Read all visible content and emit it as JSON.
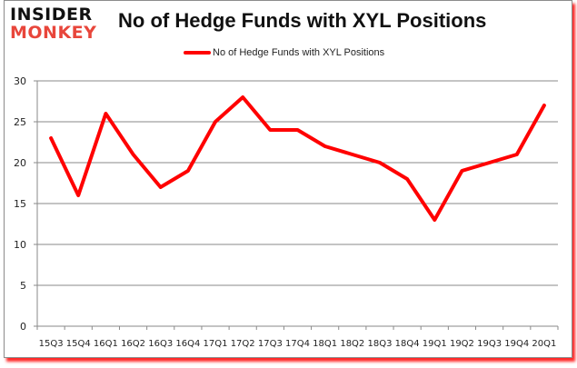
{
  "brand": {
    "line1": "INSIDER",
    "line2": "MONKEY"
  },
  "chart_data": {
    "type": "line",
    "title": "No of Hedge Funds with XYL Positions",
    "xlabel": "",
    "ylabel": "",
    "ylim": [
      0,
      30
    ],
    "yticks": [
      0,
      5,
      10,
      15,
      20,
      25,
      30
    ],
    "grid": true,
    "legend_position": "top",
    "categories": [
      "15Q3",
      "15Q4",
      "16Q1",
      "16Q2",
      "16Q3",
      "16Q4",
      "17Q1",
      "17Q2",
      "17Q3",
      "17Q4",
      "18Q1",
      "18Q2",
      "18Q3",
      "18Q4",
      "19Q1",
      "19Q2",
      "19Q3",
      "19Q4",
      "20Q1"
    ],
    "series": [
      {
        "name": "No of Hedge Funds with XYL Positions",
        "color": "#ff0000",
        "values": [
          23,
          16,
          26,
          21,
          17,
          19,
          25,
          28,
          24,
          24,
          22,
          21,
          20,
          18,
          13,
          19,
          20,
          21,
          27
        ]
      }
    ]
  }
}
